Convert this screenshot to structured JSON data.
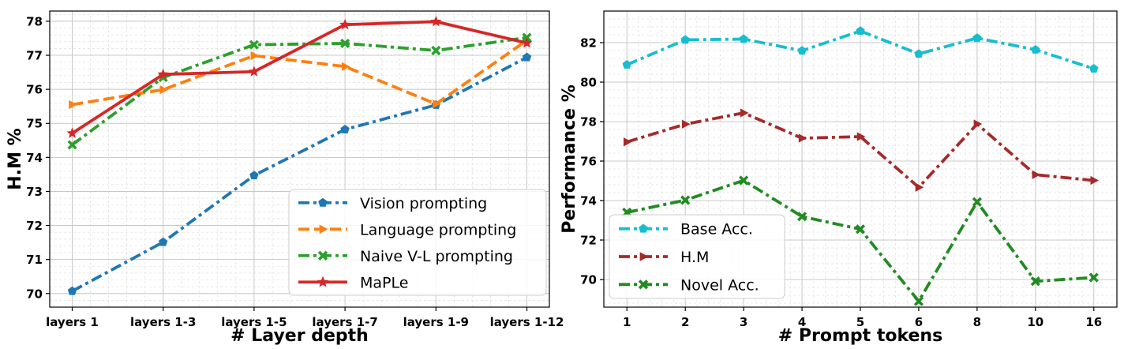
{
  "chart_data": [
    {
      "type": "line",
      "xlabel": "# Layer depth",
      "ylabel": "H.M %",
      "categories": [
        "layers 1",
        "layers 1-3",
        "layers 1-5",
        "layers 1-7",
        "layers 1-9",
        "layers 1-12"
      ],
      "ylim": [
        69.6,
        78.3
      ],
      "yticks": [
        70,
        71,
        72,
        73,
        74,
        75,
        76,
        77,
        78
      ],
      "grid": true,
      "legend": "lower-right",
      "series": [
        {
          "name": "Vision prompting",
          "color": "#1f77b4",
          "dash": "dashdot",
          "marker": "pentagon",
          "values": [
            70.07,
            71.51,
            73.47,
            74.82,
            75.54,
            76.94
          ]
        },
        {
          "name": "Language prompting",
          "color": "#ff7f0e",
          "dash": "dashed",
          "marker": "triangle-right",
          "values": [
            75.55,
            75.99,
            76.99,
            76.67,
            75.57,
            77.44
          ]
        },
        {
          "name": "Naive V-L prompting",
          "color": "#2ca02c",
          "dash": "dashdot",
          "marker": "x",
          "values": [
            74.37,
            76.35,
            77.31,
            77.35,
            77.14,
            77.52
          ]
        },
        {
          "name": "MaPLe",
          "color": "#d62728",
          "dash": "solid",
          "marker": "star",
          "values": [
            74.71,
            76.44,
            76.52,
            77.9,
            77.99,
            77.36
          ]
        }
      ]
    },
    {
      "type": "line",
      "xlabel": "# Prompt tokens",
      "ylabel": "Performance %",
      "categories": [
        "1",
        "2",
        "3",
        "4",
        "5",
        "6",
        "8",
        "10",
        "16"
      ],
      "ylim": [
        68.6,
        83.6
      ],
      "yticks": [
        70,
        72,
        74,
        76,
        78,
        80,
        82
      ],
      "grid": true,
      "legend": "lower-left",
      "series": [
        {
          "name": "Base Acc.",
          "color": "#17becf",
          "dash": "dashdot",
          "marker": "pentagon",
          "values": [
            80.88,
            82.14,
            82.18,
            81.59,
            82.59,
            81.43,
            82.23,
            81.64,
            80.68
          ]
        },
        {
          "name": "H.M",
          "color": "#a52a2a",
          "dash": "dashdot",
          "marker": "triangle-right",
          "values": [
            76.97,
            77.87,
            78.44,
            77.16,
            77.24,
            74.67,
            77.88,
            75.31,
            75.02
          ]
        },
        {
          "name": "Novel Acc.",
          "color": "#228b22",
          "dash": "dashdot",
          "marker": "x",
          "values": [
            73.4,
            74.02,
            75.02,
            73.19,
            72.55,
            68.9,
            73.93,
            69.91,
            70.1
          ]
        }
      ]
    }
  ]
}
